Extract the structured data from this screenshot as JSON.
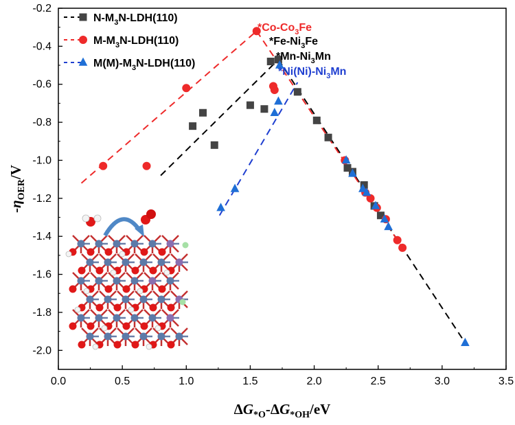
{
  "chart_data": {
    "type": "scatter",
    "xlabel": {
      "pre": "Δ",
      "g1": "G",
      "s1": "*O",
      "mid": "-Δ",
      "g2": "G",
      "s2": "*OH",
      "post": "/eV"
    },
    "ylabel": {
      "pre": "-",
      "eta": "η",
      "sub": "OER",
      "post": "/V"
    },
    "xlim": [
      0.0,
      3.5
    ],
    "ylim": [
      -2.1,
      -0.2
    ],
    "xticks": [
      "0.0",
      "0.5",
      "1.0",
      "1.5",
      "2.0",
      "2.5",
      "3.0",
      "3.5"
    ],
    "yticks": [
      "-0.2",
      "-0.4",
      "-0.6",
      "-0.8",
      "-1.0",
      "-1.2",
      "-1.4",
      "-1.6",
      "-1.8",
      "-2.0"
    ],
    "legend_position": "top-left",
    "series": [
      {
        "name": "N-M3N-LDH(110)",
        "label": {
          "a": "N-M",
          "sub": "3",
          "b": "N-LDH(110)"
        },
        "marker": "square",
        "color": "#444444",
        "line_color": "#000000",
        "x": [
          1.05,
          1.13,
          1.22,
          1.5,
          1.61,
          1.66,
          1.72,
          1.87,
          2.02,
          2.11,
          2.26,
          2.3,
          2.39,
          2.47,
          2.52
        ],
        "y": [
          -0.82,
          -0.75,
          -0.92,
          -0.71,
          -0.73,
          -0.48,
          -0.47,
          -0.64,
          -0.79,
          -0.88,
          -1.04,
          -1.06,
          -1.13,
          -1.24,
          -1.29
        ],
        "fit_left": {
          "x": [
            0.8,
            1.72
          ],
          "y": [
            -1.08,
            -0.47
          ]
        },
        "fit_right": {
          "x": [
            1.72,
            3.18
          ],
          "y": [
            -0.47,
            -1.96
          ]
        }
      },
      {
        "name": "M-M3N-LDH(110)",
        "label": {
          "a": "M-M",
          "sub": "3",
          "b": "N-LDH(110)"
        },
        "marker": "circle",
        "color": "#ee2a2a",
        "line_color": "#ee2a2a",
        "x": [
          0.35,
          0.69,
          1.0,
          1.55,
          1.68,
          1.69,
          2.24,
          2.4,
          2.44,
          2.49,
          2.56,
          2.65,
          2.69
        ],
        "y": [
          -1.03,
          -1.03,
          -0.62,
          -0.32,
          -0.61,
          -0.63,
          -1.0,
          -1.17,
          -1.2,
          -1.25,
          -1.31,
          -1.42,
          -1.46
        ],
        "fit_left": {
          "x": [
            0.18,
            1.55
          ],
          "y": [
            -1.12,
            -0.32
          ]
        },
        "fit_right": {
          "x": [
            1.55,
            2.7
          ],
          "y": [
            -0.32,
            -1.47
          ]
        }
      },
      {
        "name": "M(M)-M3N-LDH(110)",
        "label": {
          "a": "M(M)-M",
          "sub": "3",
          "b": "N-LDH(110)"
        },
        "marker": "triangle",
        "color": "#1f6fd6",
        "line_color": "#1f3fd0",
        "x": [
          1.27,
          1.38,
          1.69,
          1.72,
          1.73,
          2.25,
          2.3,
          2.38,
          2.41,
          2.48,
          2.55,
          2.58,
          3.18
        ],
        "y": [
          -1.25,
          -1.15,
          -0.75,
          -0.69,
          -0.5,
          -1.0,
          -1.07,
          -1.15,
          -1.17,
          -1.24,
          -1.31,
          -1.35,
          -1.96
        ],
        "fit_left": {
          "x": [
            1.26,
            1.87
          ],
          "y": [
            -1.29,
            -0.59
          ]
        }
      }
    ],
    "annotations": [
      {
        "label": "*Co-Co3Fe",
        "a": "*Co-Co",
        "sub": "3",
        "b": "Fe",
        "color": "#ee2a2a",
        "x": 1.55,
        "y": -0.32
      },
      {
        "label": "*Fe-Ni3Fe",
        "a": "*Fe-Ni",
        "sub": "3",
        "b": "Fe",
        "color": "#000000",
        "x": 1.66,
        "y": -0.48
      },
      {
        "label": "*Mn-Ni3Mn",
        "a": "*Mn-Ni",
        "sub": "3",
        "b": "Mn",
        "color": "#000000",
        "x": 1.72,
        "y": -0.47
      },
      {
        "label": "*Ni(Ni)-Ni3Mn",
        "a": "*Ni(Ni)-Ni",
        "sub": "3",
        "b": "Mn",
        "color": "#1f3fd0",
        "x": 1.73,
        "y": -0.5
      }
    ],
    "inset": "crystal-structure-illustration"
  }
}
